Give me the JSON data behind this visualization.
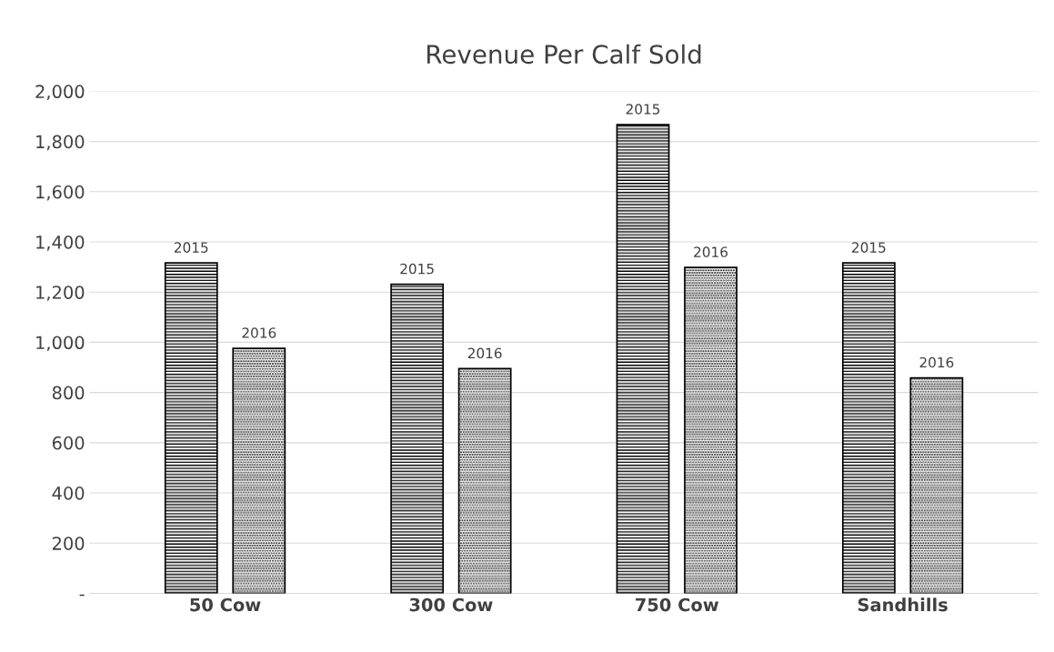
{
  "chart_data": {
    "type": "bar",
    "title": "Revenue Per Calf Sold",
    "categories": [
      "50 Cow",
      "300 Cow",
      "750 Cow",
      "Sandhills"
    ],
    "series": [
      {
        "name": "2015",
        "color": "#000000",
        "values": [
          1316,
          1231,
          1867,
          1316
        ]
      },
      {
        "name": "2016",
        "color": "#000000",
        "values": [
          976,
          895,
          1298,
          858
        ]
      }
    ],
    "ylim": [
      0,
      2000
    ],
    "yticks": [
      {
        "value": 0,
        "label": "-"
      },
      {
        "value": 200,
        "label": "200"
      },
      {
        "value": 400,
        "label": "400"
      },
      {
        "value": 600,
        "label": "600"
      },
      {
        "value": 800,
        "label": "800"
      },
      {
        "value": 1000,
        "label": "1,000"
      },
      {
        "value": 1200,
        "label": "1,200"
      },
      {
        "value": 1400,
        "label": "1,400"
      },
      {
        "value": 1600,
        "label": "1,600"
      },
      {
        "value": 1800,
        "label": "1,800"
      },
      {
        "value": 2000,
        "label": "2,000"
      }
    ],
    "grid": "y",
    "legend": false
  }
}
